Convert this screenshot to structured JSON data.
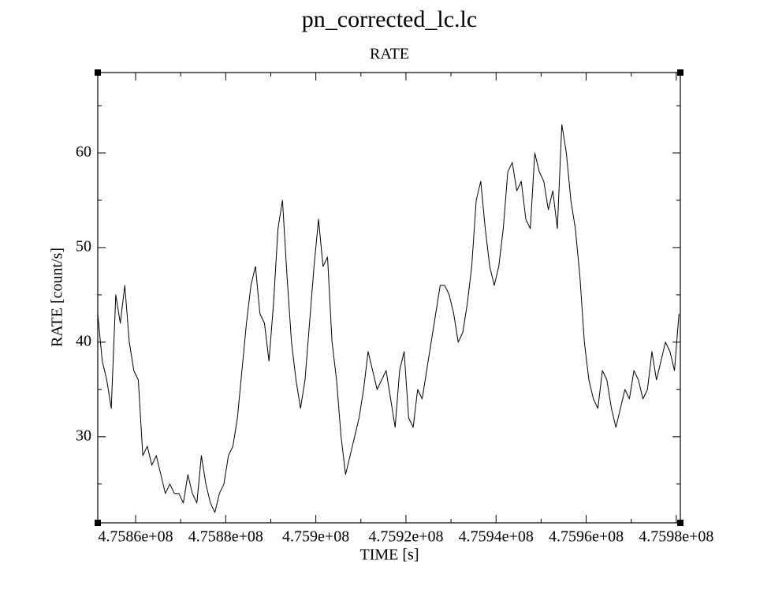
{
  "chart_data": {
    "type": "line",
    "title": "pn_corrected_lc.lc",
    "subtitle": "RATE",
    "x_label": "TIME [s]",
    "y_label": "RATE [count/s]",
    "color": "#000000",
    "x": [
      475851600,
      475852600,
      475853600,
      475854600,
      475855600,
      475856600,
      475857600,
      475858600,
      475859600,
      475860600,
      475861600,
      475862600,
      475863600,
      475864600,
      475865600,
      475866600,
      475867600,
      475868600,
      475869600,
      475870600,
      475871600,
      475872600,
      475873600,
      475874600,
      475875600,
      475876600,
      475877600,
      475878600,
      475879600,
      475880600,
      475881600,
      475882600,
      475883600,
      475884600,
      475885600,
      475886600,
      475887600,
      475888600,
      475889600,
      475890600,
      475891600,
      475892600,
      475893600,
      475894600,
      475895600,
      475896600,
      475897600,
      475898600,
      475899600,
      475900600,
      475901600,
      475902600,
      475903600,
      475904600,
      475905600,
      475906600,
      475907600,
      475908600,
      475909600,
      475910600,
      475911600,
      475912600,
      475913600,
      475914600,
      475915600,
      475916600,
      475917600,
      475918600,
      475919600,
      475920600,
      475921600,
      475922600,
      475923600,
      475924600,
      475925600,
      475926600,
      475927600,
      475928600,
      475929600,
      475930600,
      475931600,
      475932600,
      475933600,
      475934600,
      475935600,
      475936600,
      475937600,
      475938600,
      475939600,
      475940600,
      475941600,
      475942600,
      475943600,
      475944600,
      475945600,
      475946600,
      475947600,
      475948600,
      475949600,
      475950600,
      475951600,
      475952600,
      475953600,
      475954600,
      475955600,
      475956600,
      475957600,
      475958600,
      475959600,
      475960600,
      475961600,
      475962600,
      475963600,
      475964600,
      475965600,
      475966600,
      475967600,
      475968600,
      475969600,
      475970600,
      475971600,
      475972600,
      475973600,
      475974600,
      475975600,
      475976600,
      475977600,
      475978600,
      475979600,
      475980600
    ],
    "values": [
      43,
      38,
      36,
      33,
      45,
      42,
      46,
      40,
      37,
      36,
      28,
      29,
      27,
      28,
      26,
      24,
      25,
      24,
      24,
      23,
      26,
      24,
      23,
      28,
      25,
      23,
      22,
      24,
      25,
      28,
      29,
      32,
      37,
      42,
      46,
      48,
      43,
      42,
      38,
      44,
      52,
      55,
      47,
      40,
      36,
      33,
      36,
      42,
      48,
      53,
      48,
      49,
      40,
      36,
      30,
      26,
      28,
      30,
      32,
      35,
      39,
      37,
      35,
      36,
      37,
      34,
      31,
      37,
      39,
      32,
      31,
      35,
      34,
      37,
      40,
      43,
      46,
      46,
      45,
      43,
      40,
      41,
      44,
      48,
      55,
      57,
      52,
      48,
      46,
      48,
      52,
      58,
      59,
      56,
      57,
      53,
      52,
      60,
      58,
      57,
      54,
      56,
      52,
      63,
      60,
      55,
      52,
      47,
      40,
      36,
      34,
      33,
      37,
      36,
      33,
      31,
      33,
      35,
      34,
      37,
      36,
      34,
      35,
      39,
      36,
      38,
      40,
      39,
      37,
      43
    ],
    "xlim": [
      475851600,
      475980900
    ],
    "ylim": [
      20.9,
      68.5
    ],
    "xticks": [
      {
        "value": 475860000,
        "label": "4.7586e+08"
      },
      {
        "value": 475880000,
        "label": "4.7588e+08"
      },
      {
        "value": 475900000,
        "label": "4.759e+08"
      },
      {
        "value": 475920000,
        "label": "4.7592e+08"
      },
      {
        "value": 475940000,
        "label": "4.7594e+08"
      },
      {
        "value": 475960000,
        "label": "4.7596e+08"
      },
      {
        "value": 475980000,
        "label": "4.7598e+08"
      }
    ],
    "xminorticks": [
      475870000,
      475890000,
      475910000,
      475930000,
      475950000,
      475970000
    ],
    "yticks": [
      30,
      40,
      50,
      60
    ],
    "yminorticks": [
      25,
      35,
      45,
      55,
      65
    ]
  }
}
